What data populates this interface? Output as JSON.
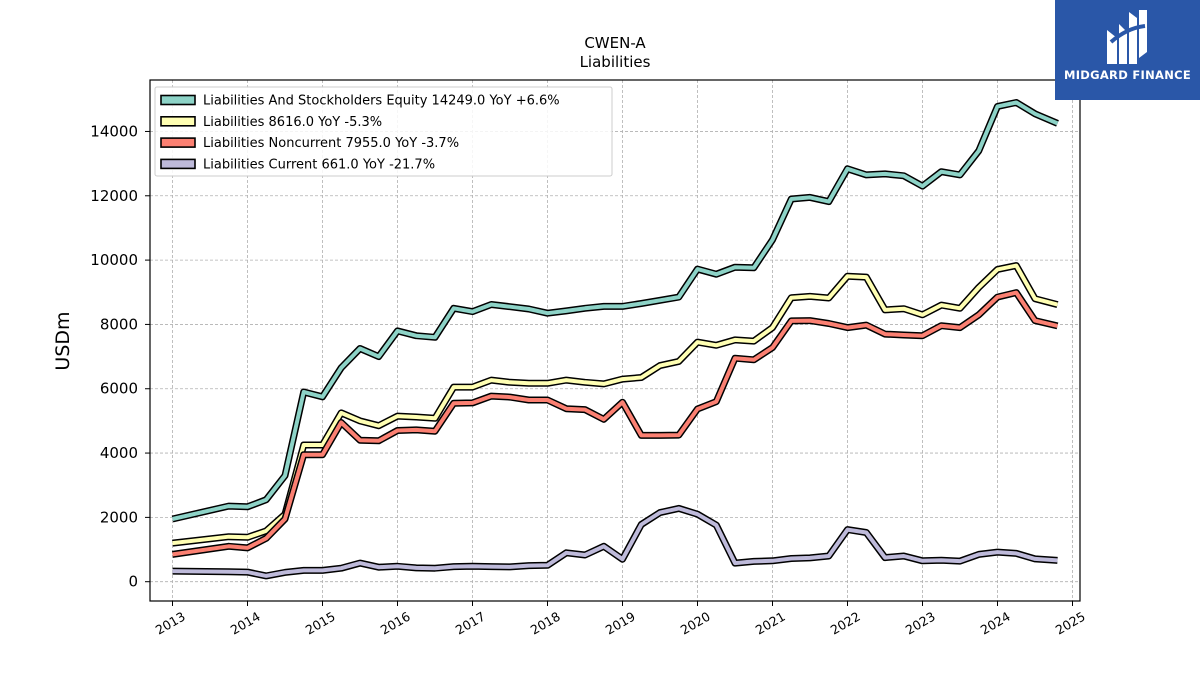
{
  "brand": {
    "name": "MIDGARD FINANCE",
    "bg_color": "#2a57a8",
    "icon": "midgard-logo-icon"
  },
  "chart_data": {
    "type": "line",
    "title": "CWEN-A",
    "subtitle": "Liabilities",
    "xlabel": "",
    "ylabel": "USDm",
    "xlim": [
      2012.7,
      2025.1
    ],
    "ylim": [
      -600,
      15600
    ],
    "xticks": [
      "2013",
      "2014",
      "2015",
      "2016",
      "2017",
      "2018",
      "2019",
      "2020",
      "2021",
      "2022",
      "2023",
      "2024",
      "2025"
    ],
    "yticks": [
      "0",
      "2000",
      "4000",
      "6000",
      "8000",
      "10000",
      "12000",
      "14000"
    ],
    "grid": true,
    "legend_position": "upper-left",
    "series": [
      {
        "name": "Liabilities And Stockholders Equity  14249.0 YoY +6.6%",
        "color": "#8dd3c7",
        "points": [
          [
            2013.0,
            1950
          ],
          [
            2013.75,
            2350
          ],
          [
            2014.0,
            2330
          ],
          [
            2014.25,
            2550
          ],
          [
            2014.5,
            3300
          ],
          [
            2014.75,
            5900
          ],
          [
            2015.0,
            5750
          ],
          [
            2015.25,
            6650
          ],
          [
            2015.5,
            7250
          ],
          [
            2015.75,
            7000
          ],
          [
            2016.0,
            7800
          ],
          [
            2016.25,
            7650
          ],
          [
            2016.5,
            7600
          ],
          [
            2016.75,
            8500
          ],
          [
            2017.0,
            8400
          ],
          [
            2017.25,
            8620
          ],
          [
            2017.5,
            8550
          ],
          [
            2017.75,
            8480
          ],
          [
            2018.0,
            8350
          ],
          [
            2018.25,
            8420
          ],
          [
            2018.5,
            8500
          ],
          [
            2018.75,
            8560
          ],
          [
            2019.0,
            8560
          ],
          [
            2019.25,
            8650
          ],
          [
            2019.5,
            8750
          ],
          [
            2019.75,
            8850
          ],
          [
            2020.0,
            9720
          ],
          [
            2020.25,
            9560
          ],
          [
            2020.5,
            9780
          ],
          [
            2020.75,
            9760
          ],
          [
            2021.0,
            10630
          ],
          [
            2021.25,
            11900
          ],
          [
            2021.5,
            11950
          ],
          [
            2021.75,
            11820
          ],
          [
            2022.0,
            12840
          ],
          [
            2022.25,
            12650
          ],
          [
            2022.5,
            12680
          ],
          [
            2022.75,
            12620
          ],
          [
            2023.0,
            12300
          ],
          [
            2023.25,
            12750
          ],
          [
            2023.5,
            12650
          ],
          [
            2023.75,
            13400
          ],
          [
            2024.0,
            14780
          ],
          [
            2024.25,
            14900
          ],
          [
            2024.5,
            14550
          ],
          [
            2024.8,
            14249
          ]
        ]
      },
      {
        "name": "Liabilities  8616.0 YoY -5.3%",
        "color": "#ffffb3",
        "points": [
          [
            2013.0,
            1200
          ],
          [
            2013.75,
            1400
          ],
          [
            2014.0,
            1380
          ],
          [
            2014.25,
            1580
          ],
          [
            2014.5,
            2100
          ],
          [
            2014.75,
            4250
          ],
          [
            2015.0,
            4250
          ],
          [
            2015.25,
            5250
          ],
          [
            2015.5,
            5000
          ],
          [
            2015.75,
            4850
          ],
          [
            2016.0,
            5150
          ],
          [
            2016.25,
            5120
          ],
          [
            2016.5,
            5080
          ],
          [
            2016.75,
            6050
          ],
          [
            2017.0,
            6050
          ],
          [
            2017.25,
            6270
          ],
          [
            2017.5,
            6200
          ],
          [
            2017.75,
            6170
          ],
          [
            2018.0,
            6170
          ],
          [
            2018.25,
            6270
          ],
          [
            2018.5,
            6200
          ],
          [
            2018.75,
            6150
          ],
          [
            2019.0,
            6300
          ],
          [
            2019.25,
            6350
          ],
          [
            2019.5,
            6720
          ],
          [
            2019.75,
            6850
          ],
          [
            2020.0,
            7450
          ],
          [
            2020.25,
            7350
          ],
          [
            2020.5,
            7520
          ],
          [
            2020.75,
            7480
          ],
          [
            2021.0,
            7900
          ],
          [
            2021.25,
            8830
          ],
          [
            2021.5,
            8870
          ],
          [
            2021.75,
            8820
          ],
          [
            2022.0,
            9500
          ],
          [
            2022.25,
            9470
          ],
          [
            2022.5,
            8450
          ],
          [
            2022.75,
            8490
          ],
          [
            2023.0,
            8300
          ],
          [
            2023.25,
            8600
          ],
          [
            2023.5,
            8500
          ],
          [
            2023.75,
            9150
          ],
          [
            2024.0,
            9710
          ],
          [
            2024.25,
            9830
          ],
          [
            2024.5,
            8800
          ],
          [
            2024.8,
            8616
          ]
        ]
      },
      {
        "name": "Liabilities Noncurrent  7955.0 YoY -3.7%",
        "color": "#fb8072",
        "points": [
          [
            2013.0,
            850
          ],
          [
            2013.75,
            1100
          ],
          [
            2014.0,
            1050
          ],
          [
            2014.25,
            1350
          ],
          [
            2014.5,
            1950
          ],
          [
            2014.75,
            3950
          ],
          [
            2015.0,
            3950
          ],
          [
            2015.25,
            4950
          ],
          [
            2015.5,
            4400
          ],
          [
            2015.75,
            4380
          ],
          [
            2016.0,
            4700
          ],
          [
            2016.25,
            4720
          ],
          [
            2016.5,
            4680
          ],
          [
            2016.75,
            5550
          ],
          [
            2017.0,
            5560
          ],
          [
            2017.25,
            5770
          ],
          [
            2017.5,
            5740
          ],
          [
            2017.75,
            5650
          ],
          [
            2018.0,
            5650
          ],
          [
            2018.25,
            5380
          ],
          [
            2018.5,
            5350
          ],
          [
            2018.75,
            5050
          ],
          [
            2019.0,
            5580
          ],
          [
            2019.25,
            4550
          ],
          [
            2019.5,
            4550
          ],
          [
            2019.75,
            4560
          ],
          [
            2020.0,
            5370
          ],
          [
            2020.25,
            5600
          ],
          [
            2020.5,
            6950
          ],
          [
            2020.75,
            6900
          ],
          [
            2021.0,
            7280
          ],
          [
            2021.25,
            8110
          ],
          [
            2021.5,
            8120
          ],
          [
            2021.75,
            8030
          ],
          [
            2022.0,
            7900
          ],
          [
            2022.25,
            7980
          ],
          [
            2022.5,
            7700
          ],
          [
            2022.75,
            7670
          ],
          [
            2023.0,
            7650
          ],
          [
            2023.25,
            7960
          ],
          [
            2023.5,
            7900
          ],
          [
            2023.75,
            8300
          ],
          [
            2024.0,
            8850
          ],
          [
            2024.25,
            8990
          ],
          [
            2024.5,
            8120
          ],
          [
            2024.8,
            7955
          ]
        ]
      },
      {
        "name": "Liabilities Current  661.0 YoY -21.7%",
        "color": "#bebada",
        "points": [
          [
            2013.0,
            330
          ],
          [
            2013.75,
            310
          ],
          [
            2014.0,
            300
          ],
          [
            2014.25,
            180
          ],
          [
            2014.5,
            290
          ],
          [
            2014.75,
            350
          ],
          [
            2015.0,
            350
          ],
          [
            2015.25,
            420
          ],
          [
            2015.5,
            580
          ],
          [
            2015.75,
            450
          ],
          [
            2016.0,
            480
          ],
          [
            2016.25,
            430
          ],
          [
            2016.5,
            420
          ],
          [
            2016.75,
            470
          ],
          [
            2017.0,
            480
          ],
          [
            2017.25,
            470
          ],
          [
            2017.5,
            460
          ],
          [
            2017.75,
            500
          ],
          [
            2018.0,
            510
          ],
          [
            2018.25,
            900
          ],
          [
            2018.5,
            830
          ],
          [
            2018.75,
            1100
          ],
          [
            2019.0,
            700
          ],
          [
            2019.25,
            1780
          ],
          [
            2019.5,
            2150
          ],
          [
            2019.75,
            2280
          ],
          [
            2020.0,
            2100
          ],
          [
            2020.25,
            1760
          ],
          [
            2020.5,
            580
          ],
          [
            2020.75,
            630
          ],
          [
            2021.0,
            650
          ],
          [
            2021.25,
            720
          ],
          [
            2021.5,
            740
          ],
          [
            2021.75,
            800
          ],
          [
            2022.0,
            1620
          ],
          [
            2022.25,
            1530
          ],
          [
            2022.5,
            750
          ],
          [
            2022.75,
            800
          ],
          [
            2023.0,
            650
          ],
          [
            2023.25,
            670
          ],
          [
            2023.5,
            640
          ],
          [
            2023.75,
            850
          ],
          [
            2024.0,
            920
          ],
          [
            2024.25,
            880
          ],
          [
            2024.5,
            710
          ],
          [
            2024.8,
            661
          ]
        ]
      }
    ]
  }
}
